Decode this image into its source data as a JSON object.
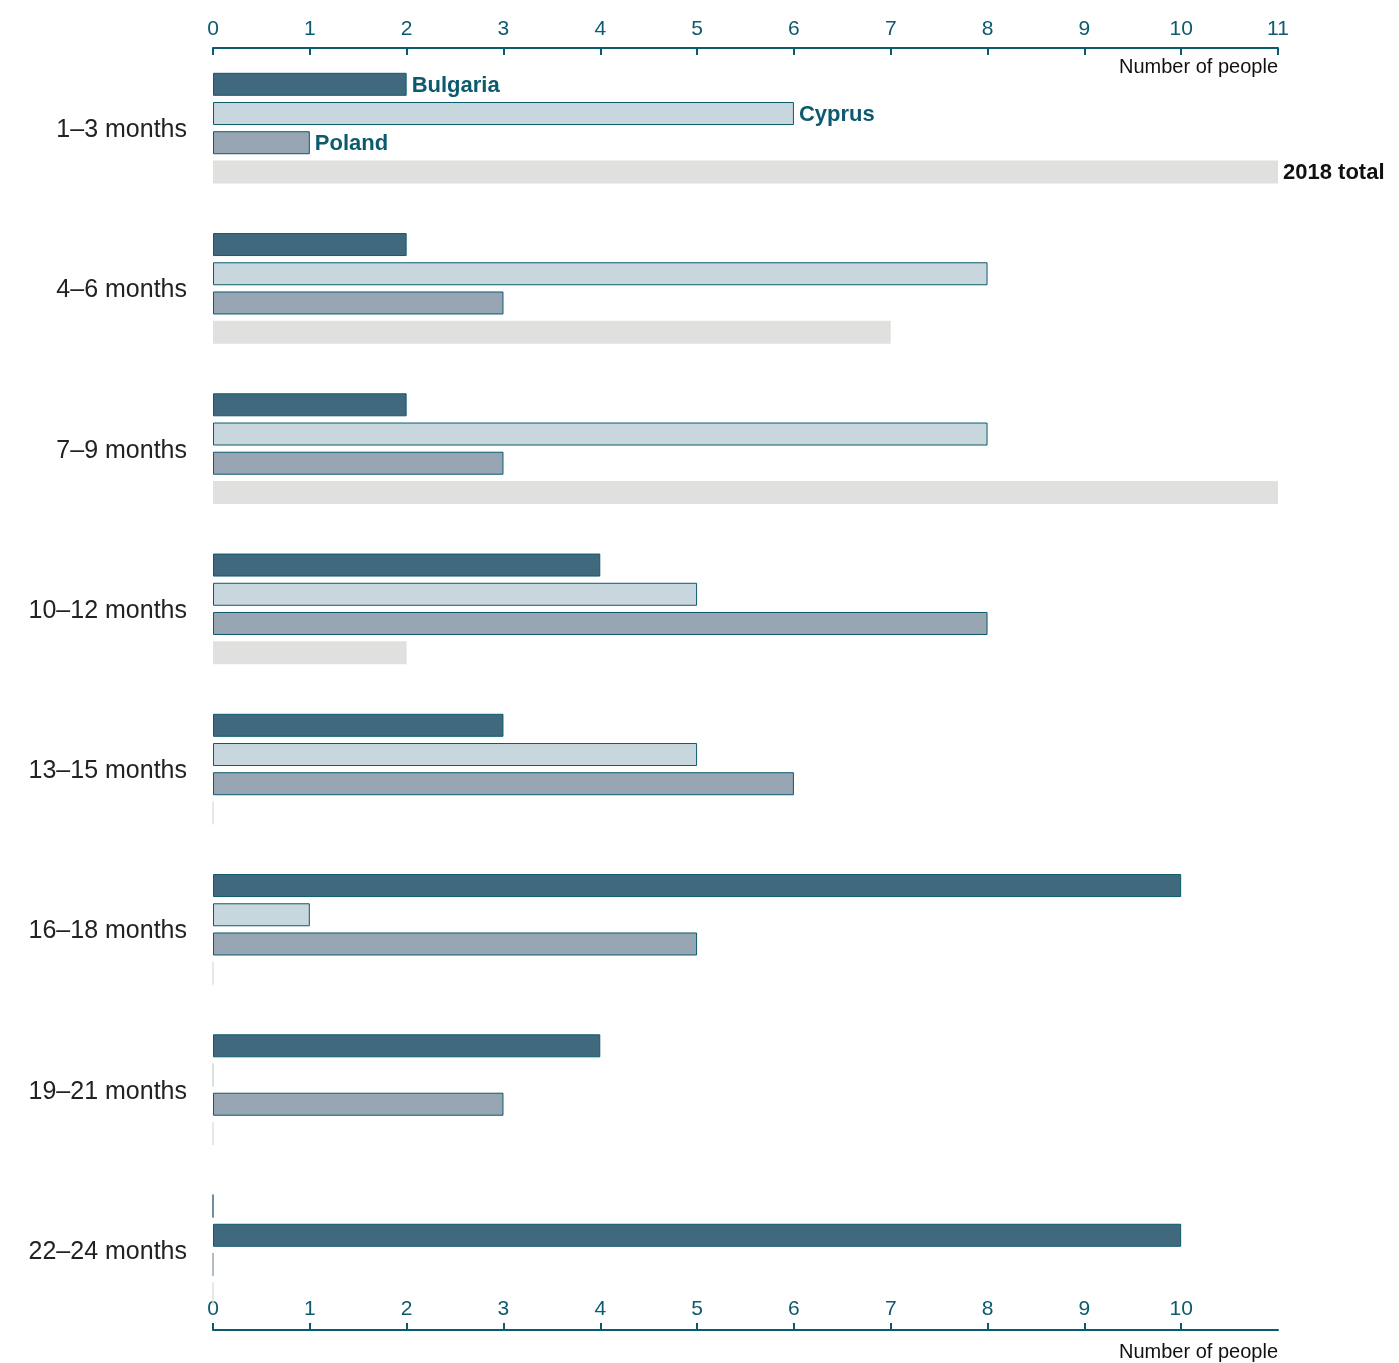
{
  "chart_data": {
    "type": "bar",
    "orientation": "horizontal",
    "categories": [
      "1–3 months",
      "4–6 months",
      "7–9 months",
      "10–12 months",
      "13–15 months",
      "16–18 months",
      "19–21 months",
      "22–24 months"
    ],
    "series": [
      {
        "name": "Bulgaria",
        "color": "#41697e",
        "values": [
          2,
          2,
          2,
          4,
          3,
          10,
          4,
          0
        ]
      },
      {
        "name": "Cyprus",
        "color": "#c8d7dd",
        "colors": [
          "#c8d7dd",
          "#c8d7dd",
          "#c8d7dd",
          "#c8d7dd",
          "#c8d7dd",
          "#c8d7dd",
          "#c8d7dd",
          "#41697e"
        ],
        "values": [
          6,
          8,
          8,
          5,
          5,
          1,
          0,
          10
        ]
      },
      {
        "name": "Poland",
        "color": "#97a6b2",
        "values": [
          1,
          3,
          3,
          8,
          6,
          5,
          3,
          0
        ]
      },
      {
        "name": "2018 total",
        "color": "#e0e1de",
        "values": [
          11,
          7,
          11,
          2,
          0,
          0,
          0,
          0
        ]
      }
    ],
    "xlim": [
      0,
      11
    ],
    "xticks": [
      0,
      1,
      2,
      3,
      4,
      5,
      6,
      7,
      8,
      9,
      10
    ],
    "xlabel": "Number of people",
    "x2lim": [
      0,
      11
    ],
    "x2ticks": [
      0,
      1,
      2,
      3,
      4,
      5,
      6,
      7,
      8,
      9,
      10,
      11
    ],
    "x2label": "Number of people",
    "grid": false,
    "legend": false
  }
}
